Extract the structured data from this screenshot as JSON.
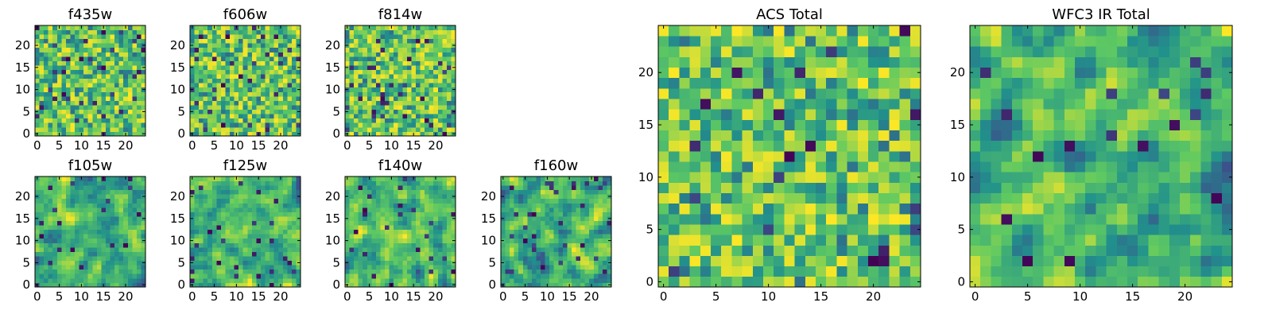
{
  "colormap": {
    "name": "viridis",
    "stops": [
      "#440154",
      "#3b528b",
      "#21918c",
      "#5ec962",
      "#fde725"
    ],
    "low_color": "#440154",
    "high_color": "#fde725",
    "axes_color": "#000000"
  },
  "chart_data": [
    {
      "type": "heatmap",
      "title": "f435w",
      "grid_shape": [
        25,
        25
      ],
      "xlim": [
        -0.5,
        24.5
      ],
      "ylim": [
        -0.5,
        24.5
      ],
      "xticks": [
        0,
        5,
        10,
        15,
        20
      ],
      "yticks": [
        0,
        5,
        10,
        15,
        20
      ],
      "value_range": [
        0,
        1
      ],
      "seed": 11,
      "smooth": 0,
      "dark_frac": 0.06
    },
    {
      "type": "heatmap",
      "title": "f606w",
      "grid_shape": [
        25,
        25
      ],
      "xlim": [
        -0.5,
        24.5
      ],
      "ylim": [
        -0.5,
        24.5
      ],
      "xticks": [
        0,
        5,
        10,
        15,
        20
      ],
      "yticks": [
        0,
        5,
        10,
        15,
        20
      ],
      "value_range": [
        0,
        1
      ],
      "seed": 23,
      "smooth": 0,
      "dark_frac": 0.05
    },
    {
      "type": "heatmap",
      "title": "f814w",
      "grid_shape": [
        25,
        25
      ],
      "xlim": [
        -0.5,
        24.5
      ],
      "ylim": [
        -0.5,
        24.5
      ],
      "xticks": [
        0,
        5,
        10,
        15,
        20
      ],
      "yticks": [
        0,
        5,
        10,
        15,
        20
      ],
      "value_range": [
        0,
        1
      ],
      "seed": 37,
      "smooth": 0,
      "dark_frac": 0.05
    },
    {
      "type": "heatmap",
      "title": "f105w",
      "grid_shape": [
        25,
        25
      ],
      "xlim": [
        -0.5,
        24.5
      ],
      "ylim": [
        -0.5,
        24.5
      ],
      "xticks": [
        0,
        5,
        10,
        15,
        20
      ],
      "yticks": [
        0,
        5,
        10,
        15,
        20
      ],
      "value_range": [
        0,
        1
      ],
      "seed": 41,
      "smooth": 1,
      "dark_frac": 0.04
    },
    {
      "type": "heatmap",
      "title": "f125w",
      "grid_shape": [
        25,
        25
      ],
      "xlim": [
        -0.5,
        24.5
      ],
      "ylim": [
        -0.5,
        24.5
      ],
      "xticks": [
        0,
        5,
        10,
        15,
        20
      ],
      "yticks": [
        0,
        5,
        10,
        15,
        20
      ],
      "value_range": [
        0,
        1
      ],
      "seed": 53,
      "smooth": 1,
      "dark_frac": 0.03
    },
    {
      "type": "heatmap",
      "title": "f140w",
      "grid_shape": [
        25,
        25
      ],
      "xlim": [
        -0.5,
        24.5
      ],
      "ylim": [
        -0.5,
        24.5
      ],
      "xticks": [
        0,
        5,
        10,
        15,
        20
      ],
      "yticks": [
        0,
        5,
        10,
        15,
        20
      ],
      "value_range": [
        0,
        1
      ],
      "seed": 67,
      "smooth": 1,
      "dark_frac": 0.03
    },
    {
      "type": "heatmap",
      "title": "f160w",
      "grid_shape": [
        25,
        25
      ],
      "xlim": [
        -0.5,
        24.5
      ],
      "ylim": [
        -0.5,
        24.5
      ],
      "xticks": [
        0,
        5,
        10,
        15,
        20
      ],
      "yticks": [
        0,
        5,
        10,
        15,
        20
      ],
      "value_range": [
        0,
        1
      ],
      "seed": 79,
      "smooth": 1,
      "dark_frac": 0.05
    },
    {
      "type": "heatmap",
      "title": "ACS Total",
      "grid_shape": [
        25,
        25
      ],
      "xlim": [
        -0.5,
        24.5
      ],
      "ylim": [
        -0.5,
        24.5
      ],
      "xticks": [
        0,
        5,
        10,
        15,
        20
      ],
      "yticks": [
        0,
        5,
        10,
        15,
        20
      ],
      "value_range": [
        0,
        1
      ],
      "seed": 97,
      "smooth": 0,
      "dark_frac": 0.035
    },
    {
      "type": "heatmap",
      "title": "WFC3 IR Total",
      "grid_shape": [
        25,
        25
      ],
      "xlim": [
        -0.5,
        24.5
      ],
      "ylim": [
        -0.5,
        24.5
      ],
      "xticks": [
        0,
        5,
        10,
        15,
        20
      ],
      "yticks": [
        0,
        5,
        10,
        15,
        20
      ],
      "value_range": [
        0,
        1
      ],
      "seed": 113,
      "smooth": 1,
      "dark_frac": 0.04
    }
  ]
}
